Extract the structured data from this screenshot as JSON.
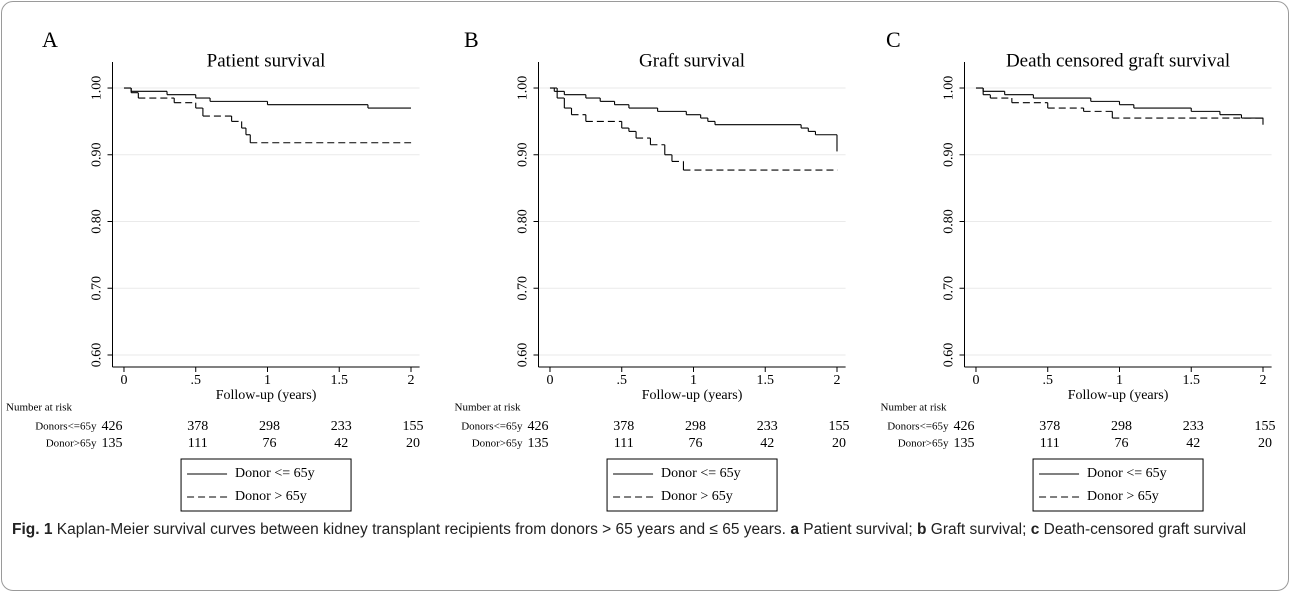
{
  "chart_data": [
    {
      "type": "line",
      "panel": "A",
      "title": "Patient survival",
      "xlabel": "Follow-up (years)",
      "step": true,
      "grid": true,
      "xlim": [
        -0.08,
        2.06
      ],
      "ylim": [
        0.582,
        1.024
      ],
      "xticks": [
        0,
        {
          "value": 0.5,
          "label": ".5"
        },
        1,
        1.5,
        2
      ],
      "yticks": [
        {
          "value": 0.6,
          "label": "0.60"
        },
        {
          "value": 0.7,
          "label": "0.70"
        },
        {
          "value": 0.8,
          "label": "0.80"
        },
        {
          "value": 0.9,
          "label": "0.90"
        },
        {
          "value": 1.0,
          "label": "1.00"
        }
      ],
      "series": [
        {
          "name": "Donor <= 65y",
          "color": "#000000",
          "dash": "solid",
          "x": [
            0,
            0.05,
            0.3,
            0.5,
            0.6,
            1.0,
            1.7,
            2.0
          ],
          "values": [
            1.0,
            0.995,
            0.99,
            0.985,
            0.98,
            0.975,
            0.97,
            0.97
          ]
        },
        {
          "name": "Donor > 65y",
          "color": "#000000",
          "dash": "dashed",
          "x": [
            0,
            0.05,
            0.1,
            0.35,
            0.5,
            0.55,
            0.75,
            0.82,
            0.85,
            0.88,
            2.0
          ],
          "values": [
            1.0,
            0.993,
            0.985,
            0.978,
            0.97,
            0.958,
            0.95,
            0.94,
            0.93,
            0.918,
            0.918
          ]
        }
      ],
      "risk_table": {
        "title": "Number at risk",
        "rows": [
          {
            "label": "Donors<=65y",
            "values": [
              426,
              378,
              298,
              233,
              155
            ]
          },
          {
            "label": "Donor>65y",
            "values": [
              135,
              111,
              76,
              42,
              20
            ]
          }
        ]
      }
    },
    {
      "type": "line",
      "panel": "B",
      "title": "Graft survival",
      "xlabel": "Follow-up (years)",
      "step": true,
      "grid": true,
      "xlim": [
        -0.08,
        2.06
      ],
      "ylim": [
        0.582,
        1.024
      ],
      "xticks": [
        0,
        {
          "value": 0.5,
          "label": ".5"
        },
        1,
        1.5,
        2
      ],
      "yticks": [
        {
          "value": 0.6,
          "label": "0.60"
        },
        {
          "value": 0.7,
          "label": "0.70"
        },
        {
          "value": 0.8,
          "label": "0.80"
        },
        {
          "value": 0.9,
          "label": "0.90"
        },
        {
          "value": 1.0,
          "label": "1.00"
        }
      ],
      "series": [
        {
          "name": "Donor <= 65y",
          "color": "#000000",
          "dash": "solid",
          "x": [
            0,
            0.03,
            0.1,
            0.25,
            0.35,
            0.45,
            0.55,
            0.75,
            0.95,
            1.05,
            1.1,
            1.15,
            1.75,
            1.8,
            1.85,
            2.0
          ],
          "values": [
            1.0,
            0.995,
            0.99,
            0.985,
            0.98,
            0.975,
            0.97,
            0.965,
            0.96,
            0.955,
            0.95,
            0.945,
            0.94,
            0.935,
            0.93,
            0.905
          ]
        },
        {
          "name": "Donor > 65y",
          "color": "#000000",
          "dash": "dashed",
          "x": [
            0,
            0.05,
            0.1,
            0.15,
            0.25,
            0.5,
            0.55,
            0.6,
            0.7,
            0.8,
            0.85,
            0.93,
            2.0
          ],
          "values": [
            1.0,
            0.985,
            0.97,
            0.96,
            0.95,
            0.94,
            0.935,
            0.925,
            0.915,
            0.9,
            0.89,
            0.877,
            0.877
          ]
        }
      ],
      "risk_table": {
        "title": "Number at risk",
        "rows": [
          {
            "label": "Donors<=65y",
            "values": [
              426,
              378,
              298,
              233,
              155
            ]
          },
          {
            "label": "Donor>65y",
            "values": [
              135,
              111,
              76,
              42,
              20
            ]
          }
        ]
      }
    },
    {
      "type": "line",
      "panel": "C",
      "title": "Death censored graft survival",
      "xlabel": "Follow-up (years)",
      "step": true,
      "grid": true,
      "xlim": [
        -0.08,
        2.06
      ],
      "ylim": [
        0.582,
        1.024
      ],
      "xticks": [
        0,
        {
          "value": 0.5,
          "label": ".5"
        },
        1,
        1.5,
        2
      ],
      "yticks": [
        {
          "value": 0.6,
          "label": "0.60"
        },
        {
          "value": 0.7,
          "label": "0.70"
        },
        {
          "value": 0.8,
          "label": "0.80"
        },
        {
          "value": 0.9,
          "label": "0.90"
        },
        {
          "value": 1.0,
          "label": "1.00"
        }
      ],
      "series": [
        {
          "name": "Donor <= 65y",
          "color": "#000000",
          "dash": "solid",
          "x": [
            0,
            0.05,
            0.2,
            0.4,
            0.8,
            1.0,
            1.1,
            1.5,
            1.7,
            1.85,
            2.0
          ],
          "values": [
            1.0,
            0.995,
            0.99,
            0.985,
            0.98,
            0.975,
            0.97,
            0.965,
            0.96,
            0.955,
            0.945
          ]
        },
        {
          "name": "Donor > 65y",
          "color": "#000000",
          "dash": "dashed",
          "x": [
            0,
            0.05,
            0.1,
            0.25,
            0.5,
            0.75,
            0.95,
            2.0
          ],
          "values": [
            1.0,
            0.99,
            0.985,
            0.978,
            0.97,
            0.965,
            0.955,
            0.955
          ]
        }
      ],
      "risk_table": {
        "title": "Number at risk",
        "rows": [
          {
            "label": "Donors<=65y",
            "values": [
              426,
              378,
              298,
              233,
              155
            ]
          },
          {
            "label": "Donor>65y",
            "values": [
              135,
              111,
              76,
              42,
              20
            ]
          }
        ]
      }
    }
  ],
  "caption": {
    "label": "Fig. 1",
    "text": "Kaplan-Meier survival curves between kidney transplant recipients from donors > 65 years and ≤ 65 years.",
    "items": [
      {
        "label": "a",
        "text": "Patient survival;"
      },
      {
        "label": "b",
        "text": "Graft survival;"
      },
      {
        "label": "c",
        "text": "Death-censored graft survival"
      }
    ]
  }
}
